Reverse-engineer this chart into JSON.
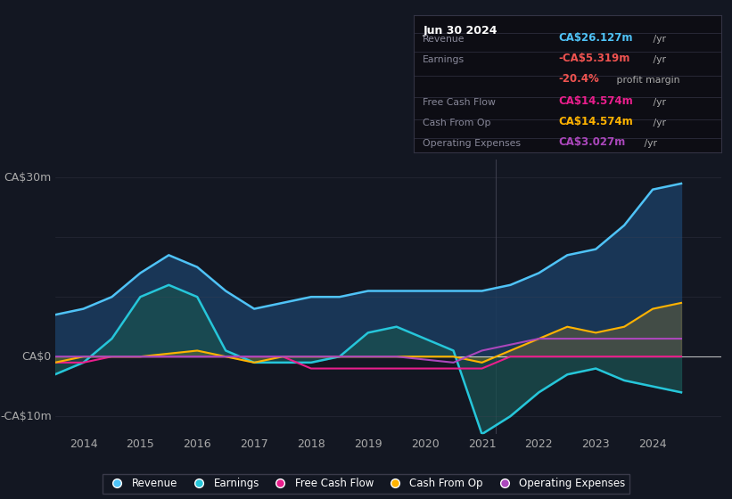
{
  "bg_color": "#131722",
  "plot_bg_color": "#131722",
  "xlim": [
    2013.5,
    2025.2
  ],
  "ylim": [
    -13,
    33
  ],
  "xticks": [
    2014,
    2015,
    2016,
    2017,
    2018,
    2019,
    2020,
    2021,
    2022,
    2023,
    2024
  ],
  "series": {
    "revenue": {
      "color": "#4fc3f7",
      "fill_color": "#1a3a5c",
      "label": "Revenue"
    },
    "earnings": {
      "color": "#26c6da",
      "fill_color": "#1a5050",
      "label": "Earnings"
    },
    "free_cash_flow": {
      "color": "#e91e8c",
      "label": "Free Cash Flow"
    },
    "cash_from_op": {
      "color": "#ffb300",
      "label": "Cash From Op"
    },
    "operating_expenses": {
      "color": "#ab47bc",
      "label": "Operating Expenses"
    }
  },
  "x": [
    2013.5,
    2014.0,
    2014.5,
    2015.0,
    2015.5,
    2016.0,
    2016.5,
    2017.0,
    2017.5,
    2018.0,
    2018.5,
    2019.0,
    2019.5,
    2020.0,
    2020.5,
    2021.0,
    2021.5,
    2022.0,
    2022.5,
    2023.0,
    2023.5,
    2024.0,
    2024.5
  ],
  "revenue": [
    7,
    8,
    10,
    14,
    17,
    15,
    11,
    8,
    9,
    10,
    10,
    11,
    11,
    11,
    11,
    11,
    12,
    14,
    17,
    18,
    22,
    28,
    29
  ],
  "earnings": [
    -3,
    -1,
    3,
    10,
    12,
    10,
    1,
    -1,
    -1,
    -1,
    0,
    4,
    5,
    3,
    1,
    -13,
    -10,
    -6,
    -3,
    -2,
    -4,
    -5,
    -6
  ],
  "free_cash_flow": [
    -1,
    -1,
    0,
    0,
    0,
    0,
    0,
    0,
    0,
    -2,
    -2,
    -2,
    -2,
    -2,
    -2,
    -2,
    0,
    0,
    0,
    0,
    0,
    0,
    0
  ],
  "cash_from_op": [
    -1,
    0,
    0,
    0,
    0.5,
    1,
    0,
    -1,
    0,
    0,
    0,
    0,
    0,
    0,
    0,
    -1,
    1,
    3,
    5,
    4,
    5,
    8,
    9
  ],
  "operating_expenses": [
    0,
    0,
    0,
    0,
    0,
    0,
    0,
    0,
    0,
    0,
    0,
    0,
    0,
    -0.5,
    -1,
    1,
    2,
    3,
    3,
    3,
    3,
    3,
    3
  ]
}
